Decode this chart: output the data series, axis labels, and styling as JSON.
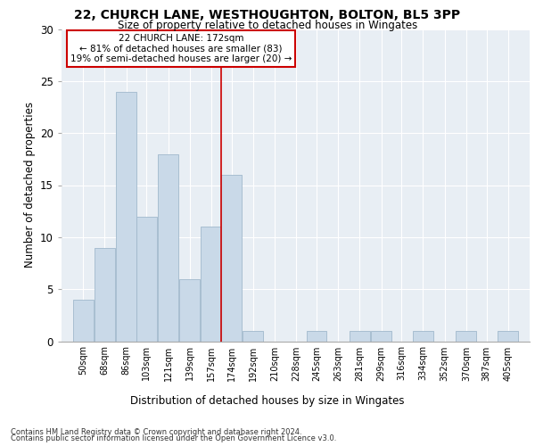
{
  "title1": "22, CHURCH LANE, WESTHOUGHTON, BOLTON, BL5 3PP",
  "title2": "Size of property relative to detached houses in Wingates",
  "xlabel": "Distribution of detached houses by size in Wingates",
  "ylabel": "Number of detached properties",
  "footer1": "Contains HM Land Registry data © Crown copyright and database right 2024.",
  "footer2": "Contains public sector information licensed under the Open Government Licence v3.0.",
  "annotation_title": "22 CHURCH LANE: 172sqm",
  "annotation_line1": "← 81% of detached houses are smaller (83)",
  "annotation_line2": "19% of semi-detached houses are larger (20) →",
  "property_value": 172,
  "bin_labels": [
    "50sqm",
    "68sqm",
    "86sqm",
    "103sqm",
    "121sqm",
    "139sqm",
    "157sqm",
    "174sqm",
    "192sqm",
    "210sqm",
    "228sqm",
    "245sqm",
    "263sqm",
    "281sqm",
    "299sqm",
    "316sqm",
    "334sqm",
    "352sqm",
    "370sqm",
    "387sqm",
    "405sqm"
  ],
  "bin_edges": [
    50,
    68,
    86,
    103,
    121,
    139,
    157,
    174,
    192,
    210,
    228,
    245,
    263,
    281,
    299,
    316,
    334,
    352,
    370,
    387,
    405
  ],
  "bar_heights": [
    4,
    9,
    24,
    12,
    18,
    6,
    11,
    16,
    1,
    0,
    0,
    1,
    0,
    1,
    1,
    0,
    1,
    0,
    1,
    0,
    1
  ],
  "bar_color": "#c9d9e8",
  "bar_edgecolor": "#a0b8cc",
  "vline_x": 174,
  "vline_color": "#cc0000",
  "annotation_box_edgecolor": "#cc0000",
  "background_color": "#e8eef4",
  "ylim": [
    0,
    30
  ],
  "yticks": [
    0,
    5,
    10,
    15,
    20,
    25,
    30
  ]
}
